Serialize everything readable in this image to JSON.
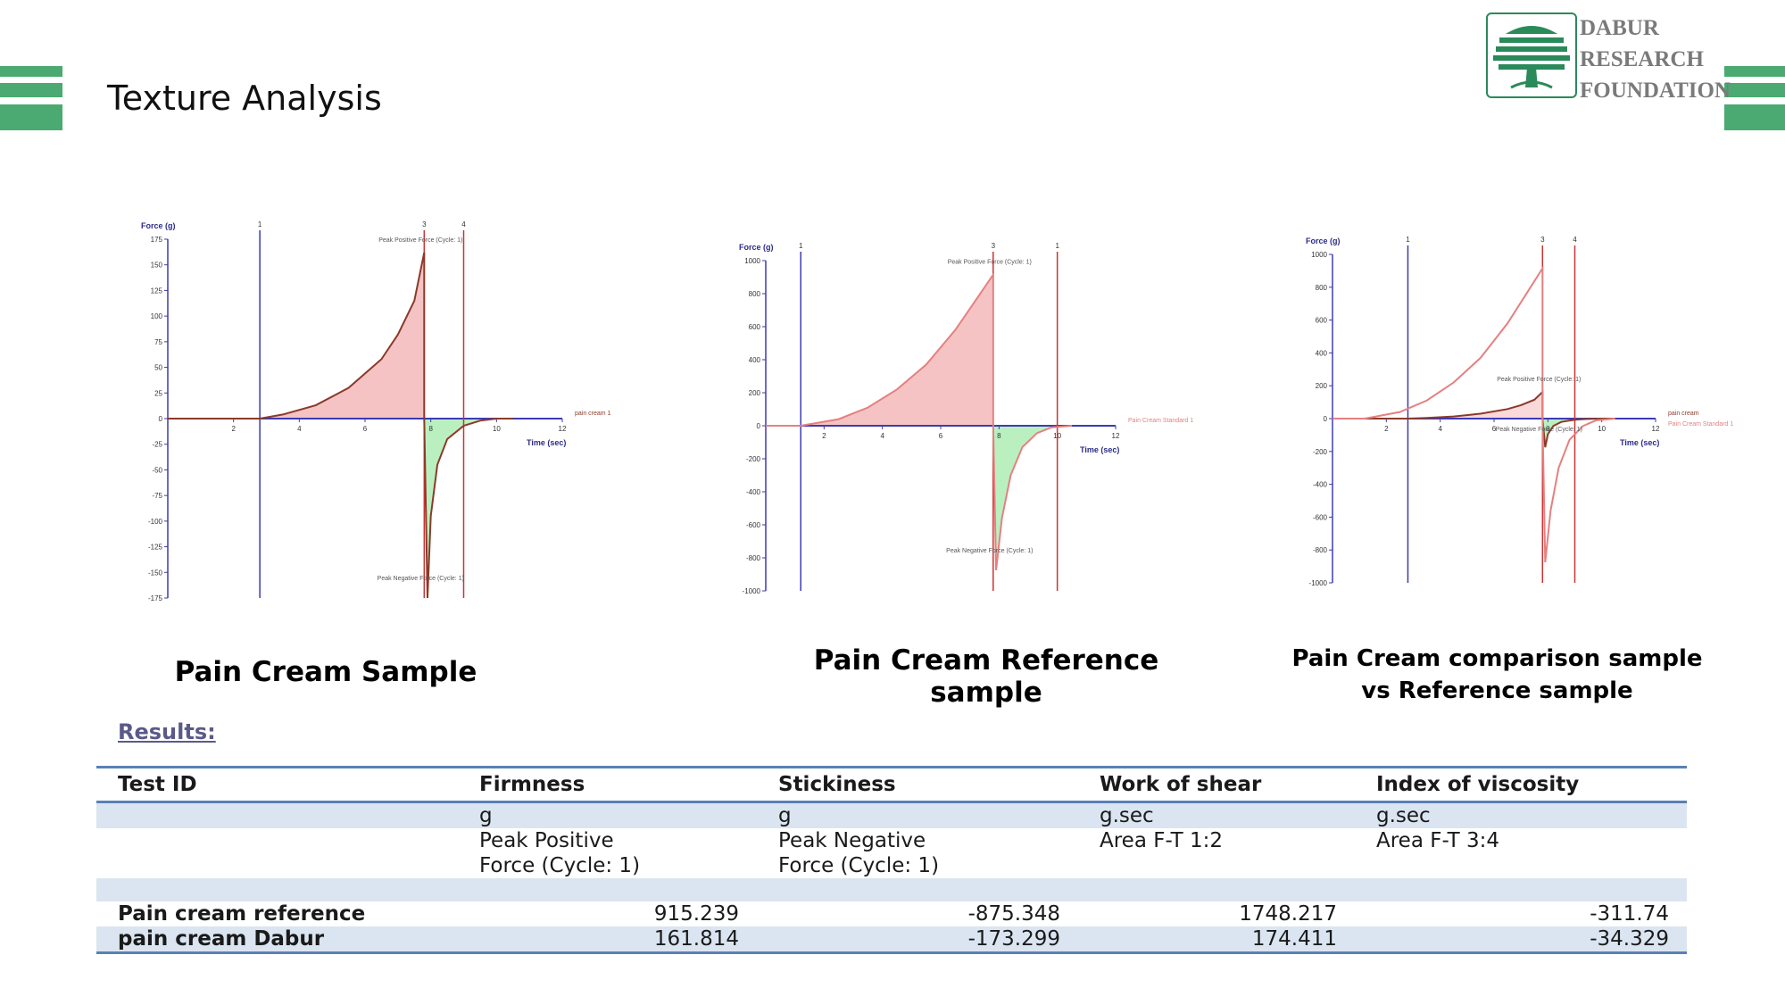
{
  "page": {
    "title": "Texture Analysis",
    "accent_color": "#4aaa72"
  },
  "logo": {
    "icon": "tree-icon",
    "line1": "DABUR",
    "line2": "RESEARCH",
    "line3": "FOUNDATION"
  },
  "captions": {
    "chart1": "Pain Cream Sample",
    "chart2": "Pain Cream Reference sample",
    "chart3_line1": "Pain Cream comparison sample",
    "chart3_line2": "vs Reference sample"
  },
  "chart_data": [
    {
      "type": "line",
      "xlabel": "Time (sec)",
      "ylabel": "Force (g)",
      "xlim": [
        0,
        12
      ],
      "ylim": [
        -175,
        175
      ],
      "xticks": [
        2,
        4,
        6,
        8,
        10,
        12
      ],
      "yticks": [
        175,
        150,
        125,
        100,
        75,
        50,
        25,
        0,
        -25,
        -50,
        -75,
        -100,
        -125,
        -150,
        -175
      ],
      "markers": [
        {
          "label": "1",
          "x": 2.8,
          "color": "#3b3bb5"
        },
        {
          "label": "3",
          "x": 7.8,
          "color": "#cc3333"
        },
        {
          "label": "4",
          "x": 9.0,
          "color": "#cc3333"
        }
      ],
      "annotations": [
        "Peak Positive Force (Cycle: 1)",
        "Peak Negative Force (Cycle: 1)"
      ],
      "legend": [
        "pain cream 1"
      ],
      "series": [
        {
          "name": "pain cream 1",
          "color": "#8a3a2a",
          "x": [
            0,
            2.8,
            3.5,
            4.5,
            5.5,
            6.5,
            7.0,
            7.5,
            7.8,
            7.8,
            7.9,
            8.0,
            8.2,
            8.5,
            9.0,
            9.5,
            10.0,
            10.5
          ],
          "y": [
            0,
            0,
            4,
            13,
            30,
            58,
            82,
            115,
            162,
            0,
            -175,
            -95,
            -45,
            -20,
            -7,
            -2,
            0,
            0
          ]
        }
      ]
    },
    {
      "type": "line",
      "xlabel": "Time (sec)",
      "ylabel": "Force (g)",
      "xlim": [
        0,
        12
      ],
      "ylim": [
        -1000,
        1000
      ],
      "xticks": [
        2,
        4,
        6,
        8,
        10,
        12
      ],
      "yticks": [
        1000,
        800,
        600,
        400,
        200,
        0,
        -200,
        -400,
        -600,
        -800,
        -1000
      ],
      "markers": [
        {
          "label": "1",
          "x": 1.2,
          "color": "#3b3bb5"
        },
        {
          "label": "3",
          "x": 7.8,
          "color": "#cc3333"
        },
        {
          "label": "1",
          "x": 10.0,
          "color": "#cc3333"
        }
      ],
      "annotations": [
        "Peak Positive Force (Cycle: 1)",
        "Peak Negative Force (Cycle: 1)"
      ],
      "legend": [
        "Pain Cream Standard 1"
      ],
      "series": [
        {
          "name": "Pain Cream Standard 1",
          "color": "#e58080",
          "x": [
            0,
            1.2,
            2.5,
            3.5,
            4.5,
            5.5,
            6.5,
            7.2,
            7.8,
            7.8,
            7.9,
            8.1,
            8.4,
            8.8,
            9.3,
            9.8,
            10.5
          ],
          "y": [
            0,
            0,
            40,
            110,
            220,
            370,
            580,
            760,
            915,
            0,
            -875,
            -560,
            -300,
            -130,
            -45,
            -10,
            0
          ]
        }
      ]
    },
    {
      "type": "line",
      "xlabel": "Time (sec)",
      "ylabel": "Force (g)",
      "xlim": [
        0,
        12
      ],
      "ylim": [
        -1000,
        1000
      ],
      "xticks": [
        2,
        4,
        6,
        8,
        10,
        12
      ],
      "yticks": [
        1000,
        800,
        600,
        400,
        200,
        0,
        -200,
        -400,
        -600,
        -800,
        -1000
      ],
      "markers": [
        {
          "label": "1",
          "x": 2.8,
          "color": "#3b3bb5"
        },
        {
          "label": "3",
          "x": 7.8,
          "color": "#cc3333"
        },
        {
          "label": "4",
          "x": 9.0,
          "color": "#cc3333"
        }
      ],
      "annotations": [
        "Peak Positive Force (Cycle: 1)",
        "Peak Negative Force (Cycle: 1)"
      ],
      "legend": [
        "pain cream",
        "Pain Cream Standard 1"
      ],
      "series": [
        {
          "name": "pain cream",
          "color": "#8a3a2a",
          "x": [
            0,
            2.8,
            3.5,
            4.5,
            5.5,
            6.5,
            7.0,
            7.5,
            7.8,
            7.8,
            7.9,
            8.0,
            8.2,
            8.5,
            9.0,
            9.5,
            10.0,
            10.5
          ],
          "y": [
            0,
            0,
            4,
            13,
            30,
            58,
            82,
            115,
            162,
            0,
            -175,
            -95,
            -45,
            -20,
            -7,
            -2,
            0,
            0
          ]
        },
        {
          "name": "Pain Cream Standard 1",
          "color": "#e58080",
          "x": [
            0,
            1.2,
            2.5,
            3.5,
            4.5,
            5.5,
            6.5,
            7.2,
            7.8,
            7.8,
            7.9,
            8.1,
            8.4,
            8.8,
            9.3,
            9.8,
            10.5
          ],
          "y": [
            0,
            0,
            40,
            110,
            220,
            370,
            580,
            760,
            915,
            0,
            -875,
            -560,
            -300,
            -130,
            -45,
            -10,
            0
          ]
        }
      ]
    }
  ],
  "results": {
    "label": "Results:",
    "headers": [
      "Test ID",
      "Firmness",
      "Stickiness",
      "Work of shear",
      "Index of viscosity"
    ],
    "units": [
      "",
      "g",
      "g",
      "g.sec",
      "g.sec"
    ],
    "desc1": [
      "",
      "Peak Positive",
      "Peak Negative",
      "Area F-T 1:2",
      "Area F-T 3:4"
    ],
    "desc2": [
      "",
      "Force (Cycle: 1)",
      "Force (Cycle: 1)",
      "",
      ""
    ],
    "rows": [
      [
        "Pain cream reference",
        "915.239",
        "-875.348",
        "1748.217",
        "-311.74"
      ],
      [
        "pain cream Dabur",
        "161.814",
        "-173.299",
        "174.411",
        "-34.329"
      ]
    ]
  }
}
